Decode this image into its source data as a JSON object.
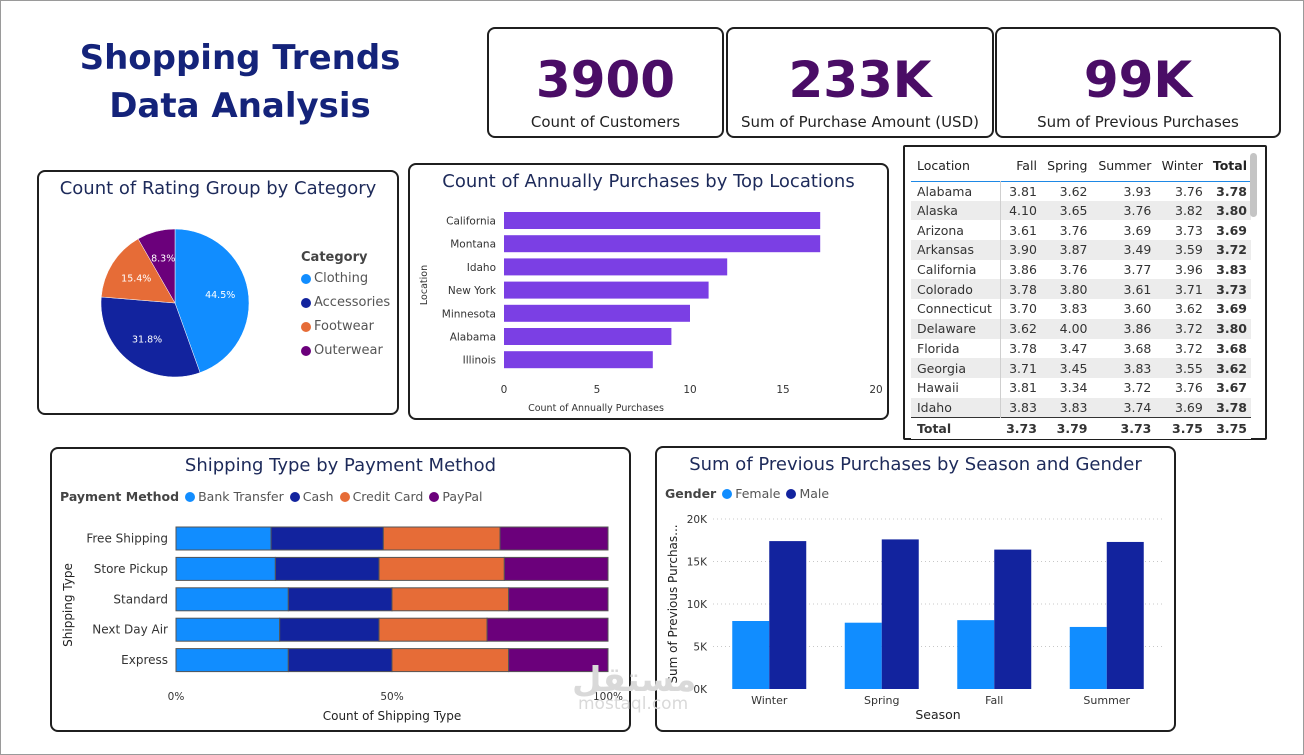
{
  "header": {
    "title": "Shopping Trends Data Analysis"
  },
  "kpis": [
    {
      "value": "3900",
      "label": "Count of Customers"
    },
    {
      "value": "233K",
      "label": "Sum of Purchase Amount (USD)"
    },
    {
      "value": "99K",
      "label": "Sum of Previous Purchases"
    }
  ],
  "table": {
    "headers": [
      "Location",
      "Fall",
      "Spring",
      "Summer",
      "Winter",
      "Total"
    ],
    "rows": [
      [
        "Alabama",
        "3.81",
        "3.62",
        "3.93",
        "3.76",
        "3.78"
      ],
      [
        "Alaska",
        "4.10",
        "3.65",
        "3.76",
        "3.82",
        "3.80"
      ],
      [
        "Arizona",
        "3.61",
        "3.76",
        "3.69",
        "3.73",
        "3.69"
      ],
      [
        "Arkansas",
        "3.90",
        "3.87",
        "3.49",
        "3.59",
        "3.72"
      ],
      [
        "California",
        "3.86",
        "3.76",
        "3.77",
        "3.96",
        "3.83"
      ],
      [
        "Colorado",
        "3.78",
        "3.80",
        "3.61",
        "3.71",
        "3.73"
      ],
      [
        "Connecticut",
        "3.70",
        "3.83",
        "3.60",
        "3.62",
        "3.69"
      ],
      [
        "Delaware",
        "3.62",
        "4.00",
        "3.86",
        "3.72",
        "3.80"
      ],
      [
        "Florida",
        "3.78",
        "3.47",
        "3.68",
        "3.72",
        "3.68"
      ],
      [
        "Georgia",
        "3.71",
        "3.45",
        "3.83",
        "3.55",
        "3.62"
      ],
      [
        "Hawaii",
        "3.81",
        "3.34",
        "3.72",
        "3.76",
        "3.67"
      ],
      [
        "Idaho",
        "3.83",
        "3.83",
        "3.74",
        "3.69",
        "3.78"
      ]
    ],
    "total": [
      "Total",
      "3.73",
      "3.79",
      "3.73",
      "3.75",
      "3.75"
    ]
  },
  "watermark": {
    "text": "مستقل",
    "sub": "mostaql.com"
  },
  "chart_data": [
    {
      "type": "pie",
      "title": "Count of Rating Group by Category",
      "legend_title": "Category",
      "legend_position": "right",
      "categories": [
        "Clothing",
        "Accessories",
        "Footwear",
        "Outerwear"
      ],
      "values": [
        44.5,
        31.8,
        15.4,
        8.3
      ],
      "labels": [
        "44.5%",
        "31.8%",
        "15.4%",
        "8.3%"
      ],
      "colors": [
        "#118dff",
        "#12239e",
        "#e66c37",
        "#6b007b"
      ]
    },
    {
      "type": "bar",
      "orientation": "horizontal",
      "title": "Count of Annually Purchases by Top Locations",
      "categories": [
        "California",
        "Montana",
        "Idaho",
        "New York",
        "Minnesota",
        "Alabama",
        "Illinois"
      ],
      "values": [
        17,
        17,
        12,
        11,
        10,
        9,
        8
      ],
      "xlabel": "Count of Annually Purchases",
      "ylabel": "Location",
      "xlim": [
        0,
        20
      ],
      "xticks": [
        "0",
        "5",
        "10",
        "15",
        "20"
      ],
      "color": "#7b3fe4"
    },
    {
      "type": "bar",
      "orientation": "horizontal",
      "stacked": "100%",
      "title": "Shipping Type by Payment Method",
      "legend_title": "Payment Method",
      "legend_position": "top-left",
      "categories": [
        "Free Shipping",
        "Store Pickup",
        "Standard",
        "Next Day Air",
        "Express"
      ],
      "series": [
        {
          "name": "Bank Transfer",
          "values": [
            22,
            23,
            26,
            24,
            26
          ],
          "color": "#118dff"
        },
        {
          "name": "Cash",
          "values": [
            26,
            24,
            24,
            23,
            24
          ],
          "color": "#12239e"
        },
        {
          "name": "Credit Card",
          "values": [
            27,
            29,
            27,
            25,
            27
          ],
          "color": "#e66c37"
        },
        {
          "name": "PayPal",
          "values": [
            25,
            24,
            23,
            28,
            23
          ],
          "color": "#6b007b"
        }
      ],
      "xlabel": "Count of Shipping Type",
      "ylabel": "Shipping Type",
      "xticks": [
        "0%",
        "50%",
        "100%"
      ]
    },
    {
      "type": "bar",
      "orientation": "vertical",
      "title": "Sum of Previous Purchases by Season and Gender",
      "legend_title": "Gender",
      "legend_position": "top-left",
      "categories": [
        "Winter",
        "Spring",
        "Fall",
        "Summer"
      ],
      "series": [
        {
          "name": "Female",
          "values": [
            8000,
            7800,
            8100,
            7300
          ],
          "color": "#118dff"
        },
        {
          "name": "Male",
          "values": [
            17400,
            17600,
            16400,
            17300
          ],
          "color": "#12239e"
        }
      ],
      "xlabel": "Season",
      "ylabel": "Sum of Previous Purchas...",
      "ylim": [
        0,
        20000
      ],
      "yticks": [
        "0K",
        "5K",
        "10K",
        "15K",
        "20K"
      ],
      "grid": true
    }
  ]
}
